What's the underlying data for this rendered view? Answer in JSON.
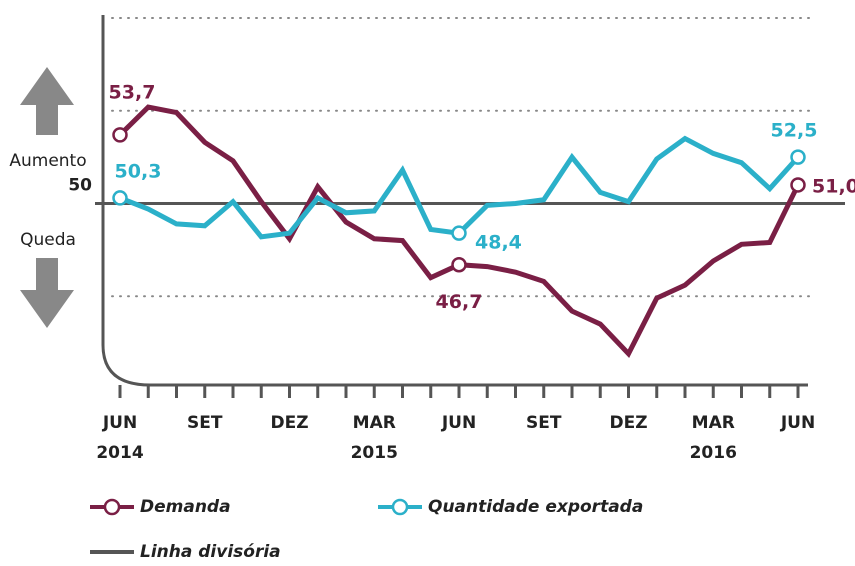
{
  "chart_data": {
    "type": "line",
    "categories": [
      "JUN 2014",
      null,
      null,
      "SET",
      null,
      null,
      "DEZ",
      null,
      null,
      "MAR 2015",
      null,
      null,
      "JUN",
      null,
      null,
      "SET",
      null,
      null,
      "DEZ",
      null,
      null,
      "MAR 2016",
      null,
      null,
      "JUN"
    ],
    "series": [
      {
        "name": "Demanda",
        "color": "#7a1f45",
        "values": [
          53.7,
          55.2,
          54.9,
          53.3,
          52.3,
          50.1,
          48.1,
          50.9,
          49.0,
          48.1,
          48.0,
          46.0,
          46.7,
          46.6,
          46.3,
          45.8,
          44.2,
          43.5,
          41.9,
          44.9,
          45.6,
          46.9,
          47.8,
          47.9,
          51.0
        ],
        "value_labels": [
          "53,7",
          null,
          null,
          null,
          null,
          null,
          null,
          null,
          null,
          null,
          null,
          null,
          "46,7",
          null,
          null,
          null,
          null,
          null,
          null,
          null,
          null,
          null,
          null,
          null,
          "51,0"
        ]
      },
      {
        "name": "Quantidade exportada",
        "color": "#2bb0c9",
        "values": [
          50.3,
          49.7,
          48.9,
          48.8,
          50.1,
          48.2,
          48.4,
          50.3,
          49.5,
          49.6,
          51.8,
          48.6,
          48.4,
          49.9,
          50.0,
          50.2,
          52.5,
          50.6,
          50.1,
          52.4,
          53.5,
          52.7,
          52.2,
          50.8,
          52.5
        ],
        "value_labels": [
          "50,3",
          null,
          null,
          null,
          null,
          null,
          null,
          null,
          null,
          null,
          null,
          null,
          "48,4",
          null,
          null,
          null,
          null,
          null,
          null,
          null,
          null,
          null,
          null,
          null,
          "52,5"
        ]
      }
    ],
    "ylim": [
      40,
      60
    ],
    "yticks": [
      50
    ],
    "gridlines": [
      45,
      55,
      60
    ],
    "divider": {
      "name": "Linha divisória",
      "value": 50,
      "color": "#555555"
    },
    "up_label": "Aumento",
    "down_label": "Queda"
  }
}
